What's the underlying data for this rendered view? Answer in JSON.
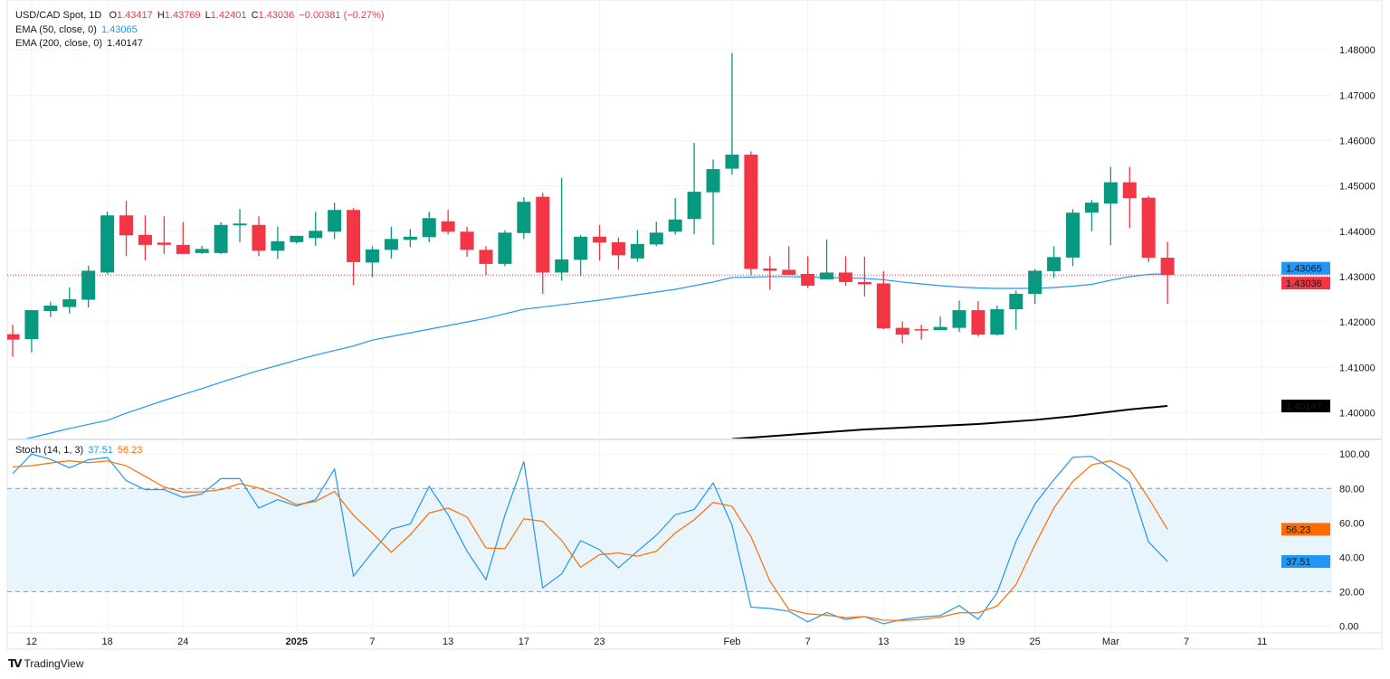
{
  "legend": {
    "symbol": "USD/CAD Spot, 1D",
    "o_label": "O",
    "o": "1.43417",
    "h_label": "H",
    "h": "1.43769",
    "l_label": "L",
    "l": "1.42401",
    "c_label": "C",
    "c": "1.43036",
    "change": "−0.00381 (−0.27%)",
    "ema50_label": "EMA (50, close, 0)",
    "ema50_value": "1.43065",
    "ema200_label": "EMA (200, close, 0)",
    "ema200_value": "1.40147",
    "stoch_label": "Stoch (14, 1, 3)",
    "stoch_k": "37.51",
    "stoch_d": "56.23"
  },
  "branding": {
    "logo_text": "TradingView"
  },
  "colors": {
    "up": "#089981",
    "down": "#F23645",
    "ema50": "#2196F3",
    "ema200": "#000000",
    "stoch_k": "#2196F3",
    "stoch_d": "#FF6D00",
    "band": "#E3F2FD"
  },
  "chart_data": [
    {
      "type": "candlestick",
      "title": "USD/CAD Spot, 1D",
      "ylim": [
        1.3943,
        1.491
      ],
      "grid": true,
      "price_ticks": [
        "1.48000",
        "1.47000",
        "1.46000",
        "1.45000",
        "1.44000",
        "1.43000",
        "1.42000",
        "1.41000",
        "1.40000"
      ],
      "price_tick_values": [
        1.48,
        1.47,
        1.46,
        1.45,
        1.44,
        1.43,
        1.42,
        1.41,
        1.4
      ],
      "x_ticks": [
        {
          "label": "12",
          "index": 1
        },
        {
          "label": "18",
          "index": 5
        },
        {
          "label": "24",
          "index": 9
        },
        {
          "label": "2025",
          "index": 15,
          "bold": true
        },
        {
          "label": "7",
          "index": 19
        },
        {
          "label": "13",
          "index": 23
        },
        {
          "label": "17",
          "index": 27
        },
        {
          "label": "23",
          "index": 31
        },
        {
          "label": "Feb",
          "index": 38
        },
        {
          "label": "7",
          "index": 42
        },
        {
          "label": "13",
          "index": 46
        },
        {
          "label": "19",
          "index": 50
        },
        {
          "label": "25",
          "index": 54
        },
        {
          "label": "Mar",
          "index": 58
        },
        {
          "label": "7",
          "index": 62
        },
        {
          "label": "11",
          "index": 66
        }
      ],
      "ohlc_fields": [
        "open",
        "high",
        "low",
        "close"
      ],
      "candles": [
        [
          1.4173,
          1.4194,
          1.4123,
          1.4161
        ],
        [
          1.4162,
          1.4227,
          1.4133,
          1.4226
        ],
        [
          1.4224,
          1.4245,
          1.4211,
          1.4236
        ],
        [
          1.4233,
          1.4276,
          1.4219,
          1.425
        ],
        [
          1.4249,
          1.4324,
          1.4232,
          1.4313
        ],
        [
          1.4309,
          1.4443,
          1.4305,
          1.4435
        ],
        [
          1.4435,
          1.4467,
          1.4345,
          1.4391
        ],
        [
          1.4392,
          1.4435,
          1.4336,
          1.437
        ],
        [
          1.4375,
          1.4433,
          1.435,
          1.437
        ],
        [
          1.437,
          1.442,
          1.435,
          1.435
        ],
        [
          1.4352,
          1.4368,
          1.435,
          1.4361
        ],
        [
          1.4352,
          1.442,
          1.435,
          1.4414
        ],
        [
          1.4413,
          1.4449,
          1.4376,
          1.4417
        ],
        [
          1.4414,
          1.4433,
          1.4345,
          1.4357
        ],
        [
          1.4357,
          1.441,
          1.4339,
          1.4378
        ],
        [
          1.4376,
          1.439,
          1.4373,
          1.439
        ],
        [
          1.4385,
          1.4443,
          1.4368,
          1.4401
        ],
        [
          1.4399,
          1.4463,
          1.4383,
          1.4447
        ],
        [
          1.4447,
          1.4451,
          1.4281,
          1.4332
        ],
        [
          1.4331,
          1.4367,
          1.4299,
          1.436
        ],
        [
          1.4359,
          1.441,
          1.434,
          1.4383
        ],
        [
          1.4381,
          1.4405,
          1.4365,
          1.4388
        ],
        [
          1.4387,
          1.4443,
          1.4376,
          1.4429
        ],
        [
          1.4422,
          1.4447,
          1.4393,
          1.4399
        ],
        [
          1.4399,
          1.441,
          1.4344,
          1.4359
        ],
        [
          1.4359,
          1.4367,
          1.4304,
          1.4328
        ],
        [
          1.4328,
          1.4402,
          1.4323,
          1.4397
        ],
        [
          1.4396,
          1.4475,
          1.4383,
          1.4465
        ],
        [
          1.4476,
          1.4485,
          1.4262,
          1.4309
        ],
        [
          1.4309,
          1.4518,
          1.4291,
          1.4338
        ],
        [
          1.4337,
          1.4392,
          1.4301,
          1.4388
        ],
        [
          1.4388,
          1.4414,
          1.4335,
          1.4375
        ],
        [
          1.4376,
          1.4386,
          1.4315,
          1.4347
        ],
        [
          1.434,
          1.4403,
          1.4333,
          1.4372
        ],
        [
          1.4371,
          1.4421,
          1.4367,
          1.4397
        ],
        [
          1.4399,
          1.4473,
          1.4393,
          1.4426
        ],
        [
          1.4427,
          1.4595,
          1.4394,
          1.4487
        ],
        [
          1.4486,
          1.4558,
          1.437,
          1.4537
        ],
        [
          1.4538,
          1.4793,
          1.4525,
          1.4569
        ],
        [
          1.4569,
          1.4576,
          1.4303,
          1.4317
        ],
        [
          1.4318,
          1.4345,
          1.4271,
          1.4313
        ],
        [
          1.4315,
          1.4367,
          1.4304,
          1.4304
        ],
        [
          1.4306,
          1.4345,
          1.4275,
          1.428
        ],
        [
          1.4294,
          1.4382,
          1.4294,
          1.4309
        ],
        [
          1.4309,
          1.4345,
          1.428,
          1.4288
        ],
        [
          1.4288,
          1.4344,
          1.4256,
          1.4283
        ],
        [
          1.4285,
          1.4312,
          1.4184,
          1.4186
        ],
        [
          1.4187,
          1.4201,
          1.4153,
          1.4172
        ],
        [
          1.4184,
          1.4194,
          1.4161,
          1.4182
        ],
        [
          1.4182,
          1.4212,
          1.4182,
          1.4189
        ],
        [
          1.4187,
          1.4247,
          1.4178,
          1.4226
        ],
        [
          1.4226,
          1.4246,
          1.4168,
          1.4172
        ],
        [
          1.4172,
          1.4236,
          1.417,
          1.4228
        ],
        [
          1.4228,
          1.4269,
          1.4183,
          1.4262
        ],
        [
          1.4262,
          1.4317,
          1.424,
          1.4313
        ],
        [
          1.4312,
          1.4367,
          1.4297,
          1.4343
        ],
        [
          1.4342,
          1.4449,
          1.4323,
          1.4441
        ],
        [
          1.4441,
          1.4469,
          1.44,
          1.4463
        ],
        [
          1.4461,
          1.4542,
          1.4369,
          1.4508
        ],
        [
          1.4508,
          1.4542,
          1.4407,
          1.4473
        ],
        [
          1.4474,
          1.4478,
          1.4332,
          1.43417
        ],
        [
          1.43417,
          1.43769,
          1.42401,
          1.43036
        ]
      ],
      "ema50": [
        1.3935,
        1.3945,
        1.3955,
        1.3965,
        1.3974,
        1.3983,
        1.3999,
        1.4013,
        1.4027,
        1.404,
        1.4053,
        1.4067,
        1.408,
        1.4093,
        1.4104,
        1.4116,
        1.4127,
        1.4137,
        1.4147,
        1.416,
        1.4168,
        1.4176,
        1.4184,
        1.4192,
        1.42,
        1.4208,
        1.4218,
        1.4228,
        1.4233,
        1.4238,
        1.4243,
        1.4248,
        1.4254,
        1.426,
        1.4266,
        1.4272,
        1.428,
        1.4288,
        1.4298,
        1.4299,
        1.43,
        1.43,
        1.4299,
        1.4298,
        1.4297,
        1.4296,
        1.4293,
        1.4288,
        1.4284,
        1.428,
        1.4277,
        1.4275,
        1.4274,
        1.4274,
        1.4274,
        1.4276,
        1.4279,
        1.4283,
        1.4292,
        1.43,
        1.4305,
        1.43065
      ],
      "ema200_start_index": 38,
      "ema200": [
        1.3942,
        1.3945,
        1.3948,
        1.3951,
        1.3954,
        1.3957,
        1.396,
        1.3963,
        1.3965,
        1.3967,
        1.3969,
        1.3971,
        1.3973,
        1.3975,
        1.3978,
        1.3981,
        1.3984,
        1.3988,
        1.3992,
        1.3997,
        1.4002,
        1.4007,
        1.4011,
        1.40147
      ],
      "last_price_label": "1.43036",
      "ema50_label_value": "1.43065",
      "ema200_label_value": "1.40147"
    },
    {
      "type": "line",
      "title": "Stoch (14, 1, 3)",
      "ylim": [
        -4,
        108
      ],
      "ticks": [
        "100.00",
        "80.00",
        "60.00",
        "40.00",
        "20.00",
        "0.00"
      ],
      "tick_values": [
        100,
        80,
        60,
        40,
        20,
        0
      ],
      "bands": [
        20,
        80
      ],
      "series": [
        {
          "name": "%K",
          "values": [
            88.6,
            100,
            97,
            92,
            96.7,
            98,
            84.5,
            79.3,
            79.3,
            74.8,
            76.8,
            85.7,
            85.7,
            68.6,
            73.5,
            69.8,
            73.5,
            91.3,
            29,
            42.9,
            56.4,
            59.3,
            81.2,
            64.7,
            43.5,
            27,
            64.4,
            95.7,
            22.2,
            30.3,
            49.7,
            44.4,
            33.8,
            43.5,
            52.8,
            64.7,
            67.7,
            83.2,
            58.6,
            11,
            10.2,
            8.6,
            2.4,
            7.8,
            3.8,
            5.5,
            1.3,
            3.8,
            5.2,
            6.1,
            11.9,
            3.8,
            19.3,
            49.3,
            71,
            85.1,
            98.1,
            98.7,
            91.9,
            83.2,
            48.9,
            37.51
          ]
        },
        {
          "name": "%D",
          "values": [
            92.6,
            93.2,
            94.8,
            96.1,
            95,
            96,
            93.2,
            87,
            80.8,
            77.9,
            78,
            79.3,
            82.8,
            80.2,
            76,
            70.6,
            72.5,
            78.3,
            64.4,
            54,
            42.9,
            53.1,
            65.7,
            68.6,
            63.4,
            45.4,
            45,
            62.4,
            60.9,
            49.7,
            34.2,
            41.5,
            42.5,
            40.6,
            43.5,
            54.1,
            61.8,
            71.9,
            69.6,
            52,
            26.1,
            9.6,
            7.1,
            6.3,
            4.8,
            5.5,
            3.4,
            3.2,
            3.8,
            5.2,
            7.7,
            7.7,
            11.6,
            24.1,
            47.3,
            68.6,
            84.1,
            93.8,
            96.1,
            90.9,
            74.4,
            56.23
          ]
        }
      ],
      "k_label": "37.51",
      "d_label": "56.23"
    }
  ]
}
